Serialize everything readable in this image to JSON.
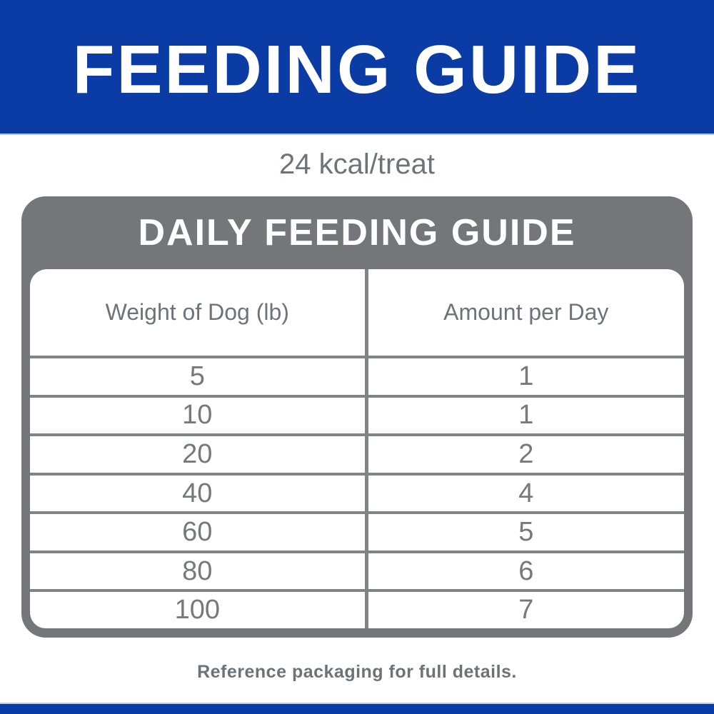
{
  "header": {
    "title": "FEEDING GUIDE"
  },
  "kcal_note": "24 kcal/treat",
  "panel": {
    "title": "DAILY FEEDING GUIDE"
  },
  "table": {
    "columns": [
      "Weight of Dog (lb)",
      "Amount per Day"
    ],
    "rows": [
      {
        "weight": "5",
        "amount": "1"
      },
      {
        "weight": "10",
        "amount": "1"
      },
      {
        "weight": "20",
        "amount": "2"
      },
      {
        "weight": "40",
        "amount": "4"
      },
      {
        "weight": "60",
        "amount": "5"
      },
      {
        "weight": "80",
        "amount": "6"
      },
      {
        "weight": "100",
        "amount": "7"
      }
    ]
  },
  "footer": {
    "note": "Reference packaging for full details."
  },
  "colors": {
    "brand_blue": "#0b3ba5",
    "panel_gray": "#75767a",
    "line_gray": "#828387",
    "text_gray": "#6d7478",
    "white": "#ffffff"
  }
}
